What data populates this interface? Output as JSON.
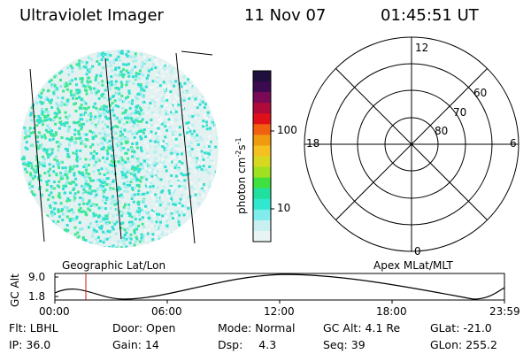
{
  "header": {
    "instrument": "Ultraviolet Imager",
    "date": "11 Nov 07",
    "time": "01:45:51 UT"
  },
  "colorbar": {
    "label": "photon cm",
    "label_exp1": "-2",
    "label_mid": "s",
    "label_exp2": "-1",
    "ticks": [
      "100",
      "10"
    ],
    "colors": [
      "#1e0f3c",
      "#3c0a50",
      "#7a0a55",
      "#b00a3a",
      "#e0101a",
      "#f06010",
      "#f09a10",
      "#f5c020",
      "#d8d820",
      "#a0e020",
      "#40e040",
      "#20e0a0",
      "#30e8d0",
      "#80ecec",
      "#c8f0f0",
      "#e8f4f4"
    ]
  },
  "polar": {
    "mlt_labels": [
      "12",
      "18",
      "6",
      "0"
    ],
    "lat_labels": [
      "60",
      "70",
      "80"
    ]
  },
  "timeline": {
    "left_label": "Geographic Lat/Lon",
    "right_label": "Apex MLat/MLT",
    "axis_label": "GC Alt",
    "y_ticks": [
      "9.0",
      "1.8"
    ],
    "x_ticks": [
      "00:00",
      "06:00",
      "12:00",
      "18:00",
      "23:59"
    ]
  },
  "info": {
    "row1": [
      {
        "key": "Flt:",
        "value": "LBHL"
      },
      {
        "key": "Door:",
        "value": "Open"
      },
      {
        "key": "Mode:",
        "value": "Normal"
      },
      {
        "key": "GC Alt:",
        "value": "4.1 Re"
      },
      {
        "key": "GLat:",
        "value": "-21.0"
      }
    ],
    "row2": [
      {
        "key": "IP:",
        "value": "36.0"
      },
      {
        "key": "Gain:",
        "value": "14"
      },
      {
        "key": "Dsp:",
        "value": "4.3"
      },
      {
        "key": "Seq:",
        "value": "39"
      },
      {
        "key": "GLon:",
        "value": "255.2"
      }
    ]
  }
}
